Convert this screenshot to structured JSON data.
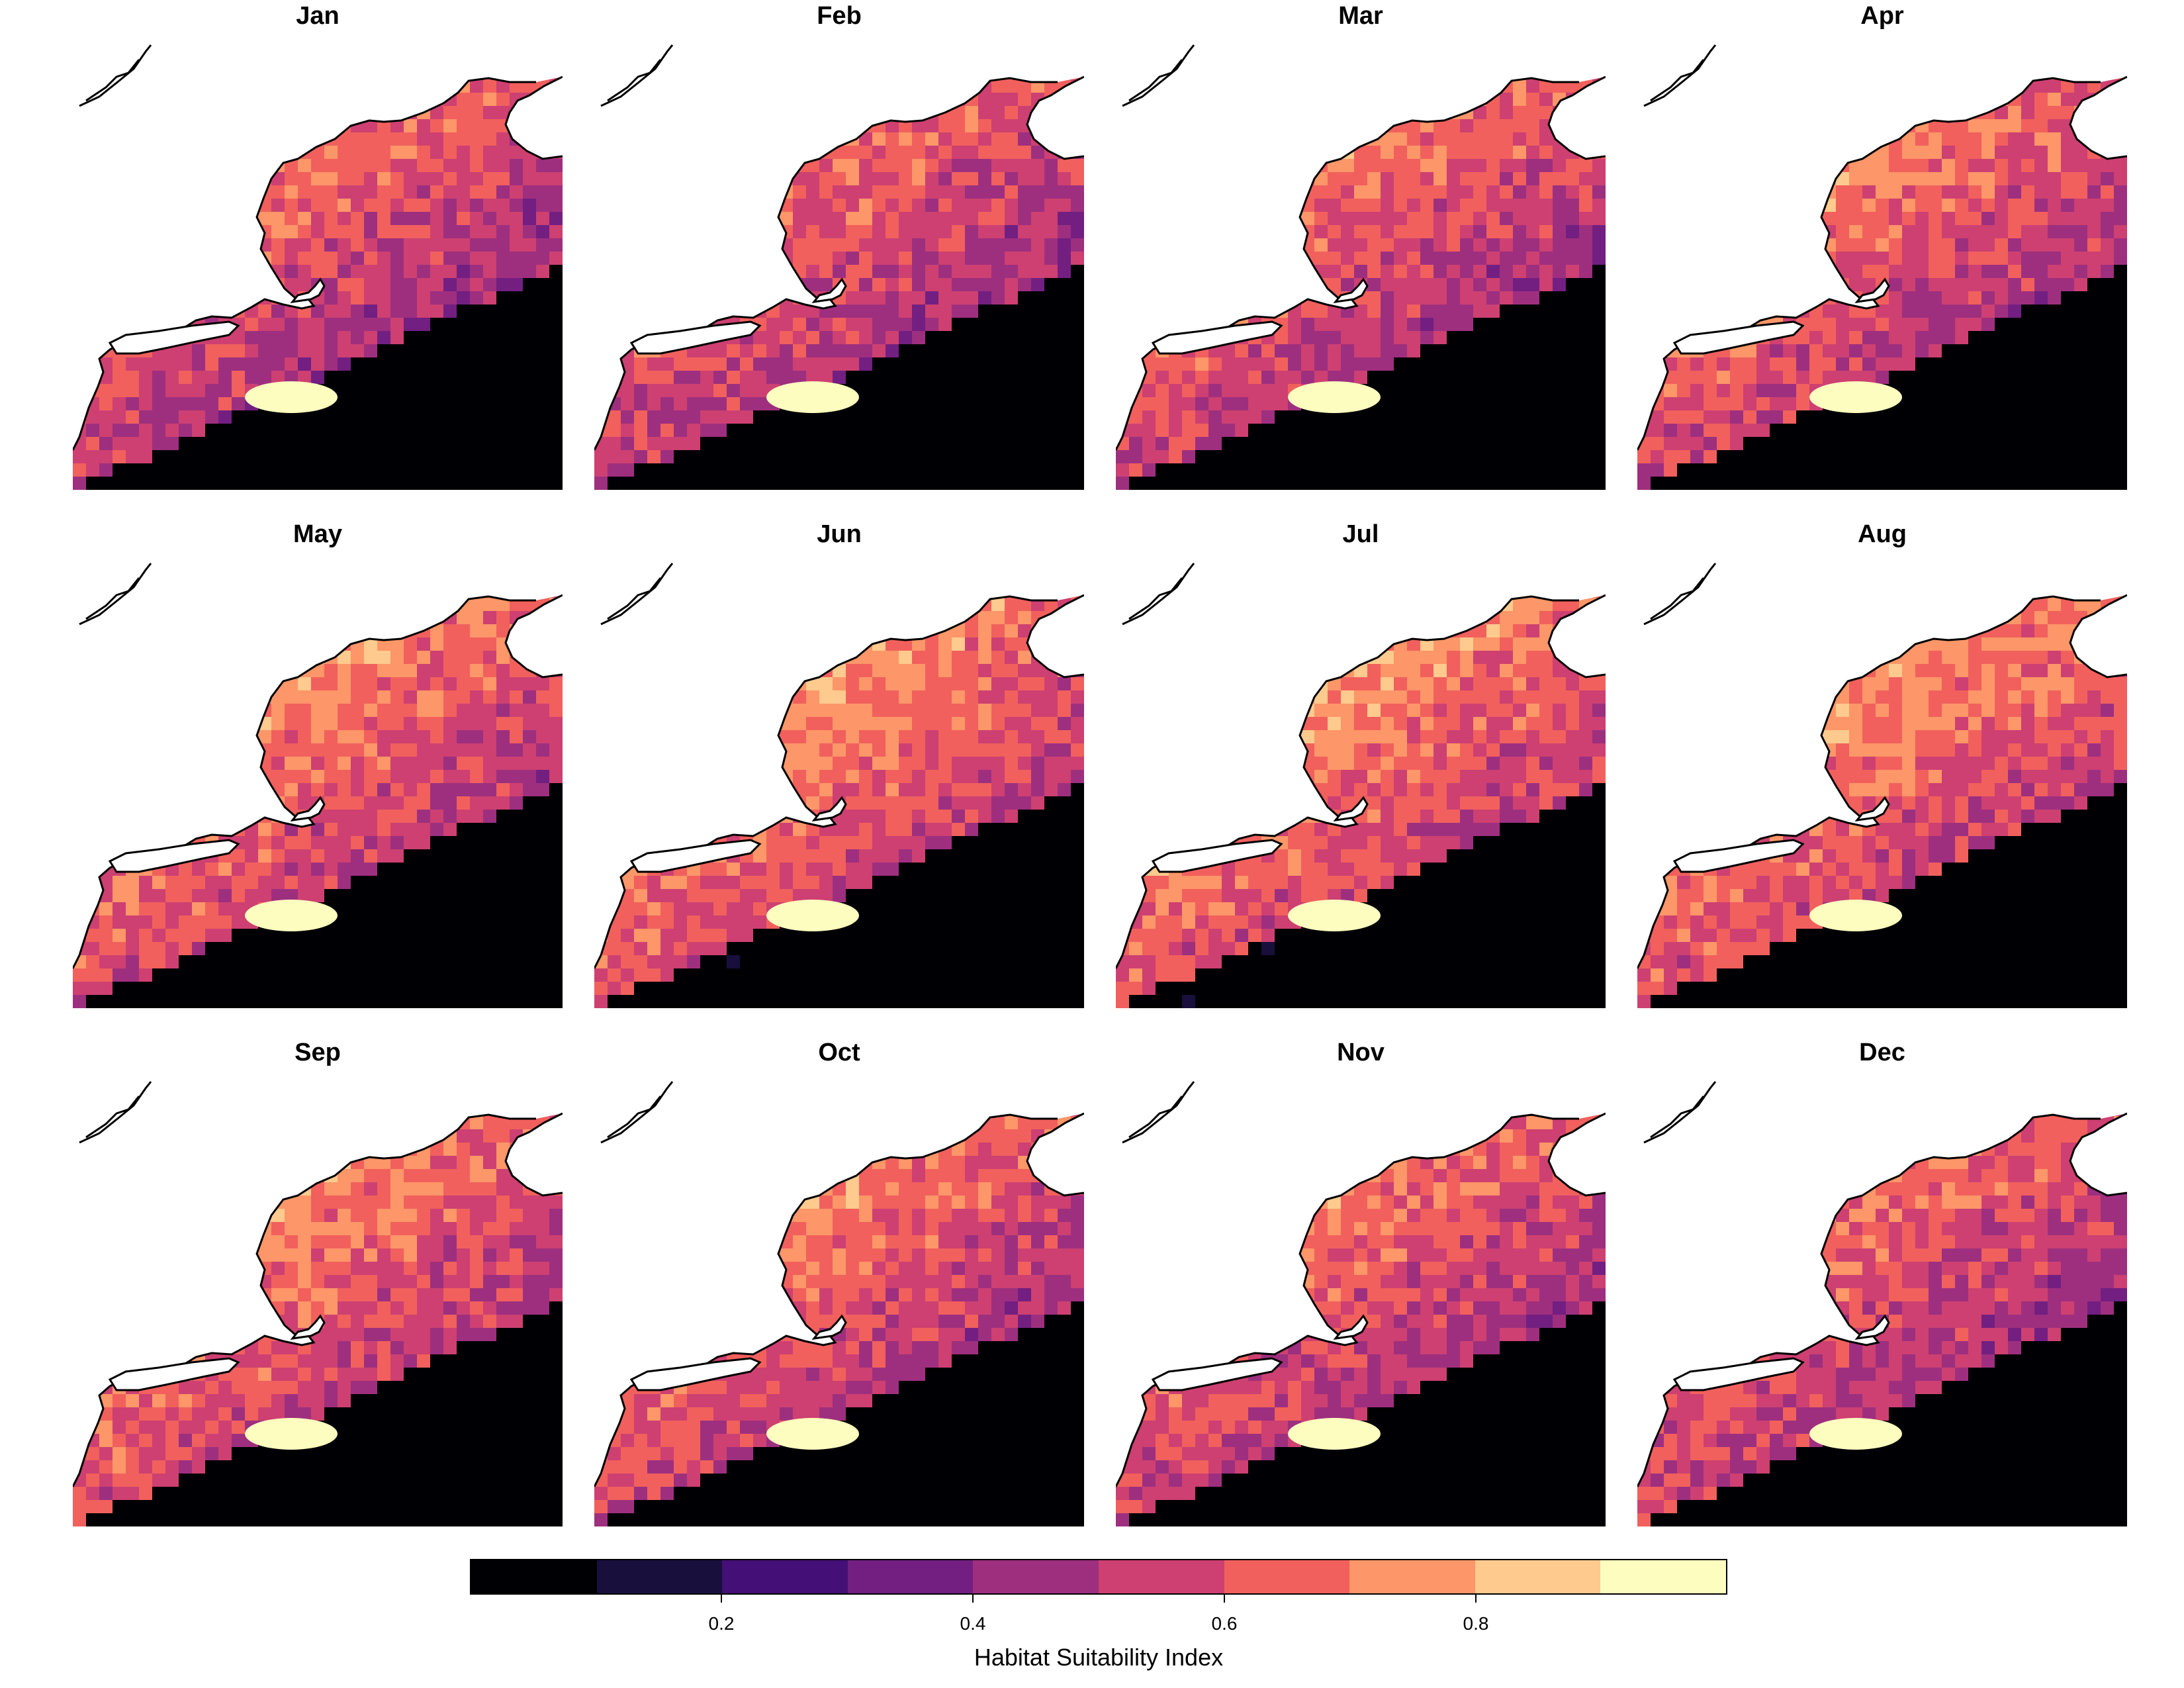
{
  "panels": [
    {
      "month": "Jan"
    },
    {
      "month": "Feb"
    },
    {
      "month": "Mar"
    },
    {
      "month": "Apr"
    },
    {
      "month": "May"
    },
    {
      "month": "Jun"
    },
    {
      "month": "Jul"
    },
    {
      "month": "Aug"
    },
    {
      "month": "Sep"
    },
    {
      "month": "Oct"
    },
    {
      "month": "Nov"
    },
    {
      "month": "Dec"
    }
  ],
  "legend": {
    "title": "Habitat Suitability Index",
    "breaks": [
      0,
      0.1,
      0.2,
      0.3,
      0.4,
      0.5,
      0.6,
      0.7,
      0.8,
      0.9,
      1.0
    ],
    "tick_labels": [
      "0.2",
      "0.4",
      "0.6",
      "0.8"
    ],
    "tick_values": [
      0.2,
      0.4,
      0.6,
      0.8
    ],
    "colors": [
      "#000004",
      "#180f3d",
      "#440f76",
      "#721f81",
      "#9e2f7f",
      "#cd4071",
      "#f1605d",
      "#fd9668",
      "#feca8d",
      "#fcfdbf"
    ]
  }
}
